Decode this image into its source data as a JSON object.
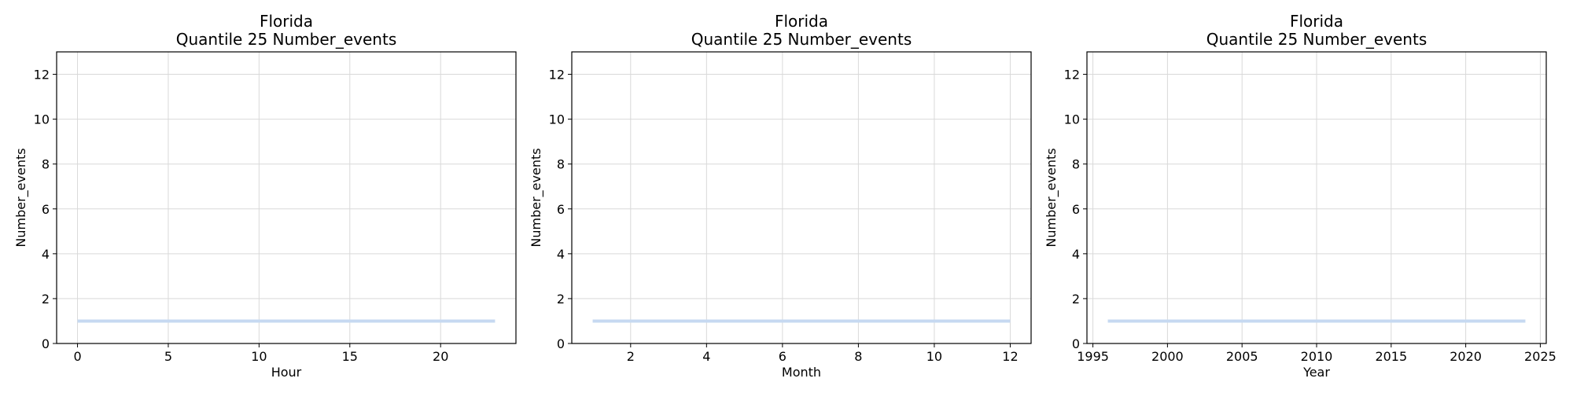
{
  "colors": {
    "line": "#c6d9f1",
    "grid": "#d9d9d9",
    "axes": "#000000",
    "background": "#ffffff"
  },
  "chart_data": [
    {
      "type": "line",
      "title": "Florida",
      "subtitle": "Quantile 25 Number_events",
      "xlabel": "Hour",
      "ylabel": "Number_events",
      "xlim": [
        -1.15,
        24.15
      ],
      "ylim": [
        0,
        13
      ],
      "xticks": [
        0,
        5,
        10,
        15,
        20
      ],
      "yticks": [
        0,
        2,
        4,
        6,
        8,
        10,
        12
      ],
      "grid": true,
      "x": [
        0,
        1,
        2,
        3,
        4,
        5,
        6,
        7,
        8,
        9,
        10,
        11,
        12,
        13,
        14,
        15,
        16,
        17,
        18,
        19,
        20,
        21,
        22,
        23
      ],
      "y": [
        1,
        1,
        1,
        1,
        1,
        1,
        1,
        1,
        1,
        1,
        1,
        1,
        1,
        1,
        1,
        1,
        1,
        1,
        1,
        1,
        1,
        1,
        1,
        1
      ]
    },
    {
      "type": "line",
      "title": "Florida",
      "subtitle": "Quantile 25 Number_events",
      "xlabel": "Month",
      "ylabel": "Number_events",
      "xlim": [
        0.45,
        12.55
      ],
      "ylim": [
        0,
        13
      ],
      "xticks": [
        2,
        4,
        6,
        8,
        10,
        12
      ],
      "yticks": [
        0,
        2,
        4,
        6,
        8,
        10,
        12
      ],
      "grid": true,
      "x": [
        1,
        2,
        3,
        4,
        5,
        6,
        7,
        8,
        9,
        10,
        11,
        12
      ],
      "y": [
        1,
        1,
        1,
        1,
        1,
        1,
        1,
        1,
        1,
        1,
        1,
        1
      ]
    },
    {
      "type": "line",
      "title": "Florida",
      "subtitle": "Quantile 25 Number_events",
      "xlabel": "Year",
      "ylabel": "Number_events",
      "xlim": [
        1994.6,
        2025.4
      ],
      "ylim": [
        0,
        13
      ],
      "xticks": [
        1995,
        2000,
        2005,
        2010,
        2015,
        2020,
        2025
      ],
      "yticks": [
        0,
        2,
        4,
        6,
        8,
        10,
        12
      ],
      "grid": true,
      "x": [
        1996,
        1997,
        1998,
        1999,
        2000,
        2001,
        2002,
        2003,
        2004,
        2005,
        2006,
        2007,
        2008,
        2009,
        2010,
        2011,
        2012,
        2013,
        2014,
        2015,
        2016,
        2017,
        2018,
        2019,
        2020,
        2021,
        2022,
        2023,
        2024
      ],
      "y": [
        1,
        1,
        1,
        1,
        1,
        1,
        1,
        1,
        1,
        1,
        1,
        1,
        1,
        1,
        1,
        1,
        1,
        1,
        1,
        1,
        1,
        1,
        1,
        1,
        1,
        1,
        1,
        1,
        1
      ]
    }
  ]
}
